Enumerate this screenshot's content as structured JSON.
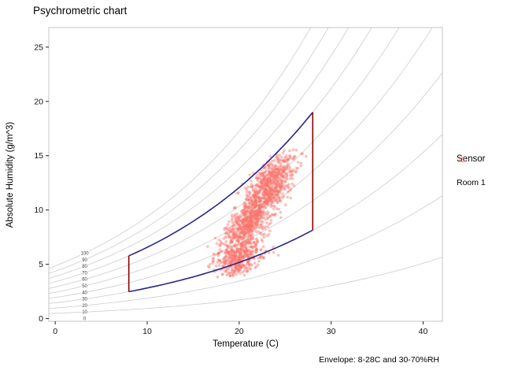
{
  "chart_data": {
    "type": "scatter",
    "title": "Psychrometric chart",
    "xlabel": "Temperature (C)",
    "ylabel": "Absolute Humidity (g/m^3)",
    "xlim": [
      -0.7,
      42.1
    ],
    "ylim": [
      -0.25,
      26.8
    ],
    "x_ticks": [
      0,
      10,
      20,
      30,
      40
    ],
    "y_ticks": [
      0,
      5,
      10,
      15,
      20,
      25
    ],
    "grid": false,
    "rh_curves": {
      "values": [
        10,
        20,
        30,
        40,
        50,
        60,
        70,
        80,
        90,
        100
      ],
      "label_values": [
        100,
        90,
        80,
        70,
        60,
        50,
        40,
        30,
        20,
        10,
        0
      ],
      "label_temperature": 3.2,
      "color": "#cccccc"
    },
    "envelope": {
      "t_min": 8,
      "t_max": 28,
      "rh_min": 30,
      "rh_max": 70,
      "temp_line_color": "#8B0000",
      "rh_line_color": "#26268C"
    },
    "series": [
      {
        "name": "Room 1",
        "color": "#F8766D",
        "point_opacity": 0.45,
        "point_radius": 1.8,
        "seed": 42,
        "bounds": {
          "t": [
            16.3,
            27.3
          ],
          "ah": [
            3.8,
            15.6
          ],
          "rh_max": 72,
          "rh_min": 20
        },
        "clusters": [
          {
            "t_mean": 21.3,
            "ah_mean": 9.3,
            "t_sd": 1.7,
            "ah_sd": 2.3,
            "corr": 0.78,
            "n": 1000
          },
          {
            "t_mean": 23.8,
            "ah_mean": 12.8,
            "t_sd": 1.2,
            "ah_sd": 1.2,
            "corr": 0.5,
            "n": 400
          },
          {
            "t_mean": 20.2,
            "ah_mean": 5.4,
            "t_sd": 1.2,
            "ah_sd": 0.8,
            "corr": 0.4,
            "n": 320
          }
        ]
      }
    ],
    "legend": {
      "title": "Sensor",
      "entries": [
        {
          "label": "Room 1",
          "color": "#F8766D"
        }
      ]
    },
    "caption": "Envelope: 8-28C and 30-70%RH"
  }
}
